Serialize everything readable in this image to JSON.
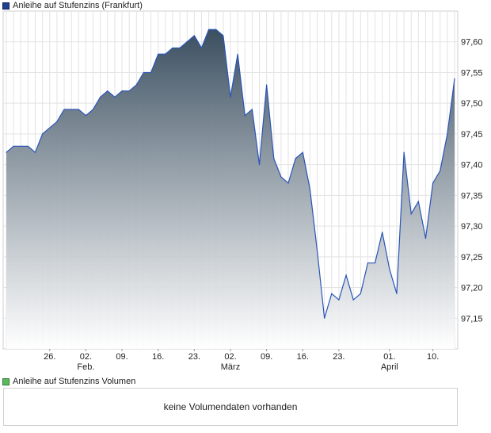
{
  "price_legend": {
    "label": "Anleihe auf Stufenzins (Frankfurt)",
    "color": "#1f3f8f"
  },
  "volume_legend": {
    "label": "Anleihe auf Stufenzins Volumen",
    "color": "#5cb85c"
  },
  "volume_panel": {
    "message": "keine Volumendaten vorhanden"
  },
  "chart_data": {
    "type": "area",
    "series": [
      {
        "values": [
          97.42,
          97.43,
          97.43,
          97.43,
          97.42,
          97.45,
          97.46,
          97.47,
          97.49,
          97.49,
          97.49,
          97.48,
          97.49,
          97.51,
          97.52,
          97.51,
          97.52,
          97.52,
          97.53,
          97.55,
          97.55,
          97.58,
          97.58,
          97.59,
          97.59,
          97.6,
          97.61,
          97.59,
          97.62,
          97.62,
          97.61,
          97.51,
          97.58,
          97.48,
          97.49,
          97.4,
          97.53,
          97.41,
          97.38,
          97.37,
          97.41,
          97.42,
          97.36,
          97.26,
          97.15,
          97.19,
          97.18,
          97.22,
          97.18,
          97.19,
          97.24,
          97.24,
          97.29,
          97.23,
          97.19,
          97.42,
          97.32,
          97.34,
          97.28,
          97.37,
          97.39,
          97.45,
          97.54
        ]
      }
    ],
    "y_ticks": [
      "97,60",
      "97,55",
      "97,50",
      "97,45",
      "97,40",
      "97,35",
      "97,30",
      "97,25",
      "97,20",
      "97,15"
    ],
    "y_tick_values": [
      97.6,
      97.55,
      97.5,
      97.45,
      97.4,
      97.35,
      97.3,
      97.25,
      97.2,
      97.15
    ],
    "ylim": [
      97.1,
      97.65
    ],
    "x_ticks": [
      {
        "label": "26.",
        "sub": "",
        "index": 6
      },
      {
        "label": "02.",
        "sub": "Feb.",
        "index": 11
      },
      {
        "label": "09.",
        "sub": "",
        "index": 16
      },
      {
        "label": "16.",
        "sub": "",
        "index": 21
      },
      {
        "label": "23.",
        "sub": "",
        "index": 26
      },
      {
        "label": "02.",
        "sub": "März",
        "index": 31
      },
      {
        "label": "09.",
        "sub": "",
        "index": 36
      },
      {
        "label": "16.",
        "sub": "",
        "index": 41
      },
      {
        "label": "23.",
        "sub": "",
        "index": 46
      },
      {
        "label": "01.",
        "sub": "April",
        "index": 53
      },
      {
        "label": "10.",
        "sub": "",
        "index": 59
      }
    ],
    "grid": true,
    "line_color": "#2a55b8",
    "fill_top_color": "#3b4f60",
    "fill_bottom_color": "#ffffff"
  }
}
